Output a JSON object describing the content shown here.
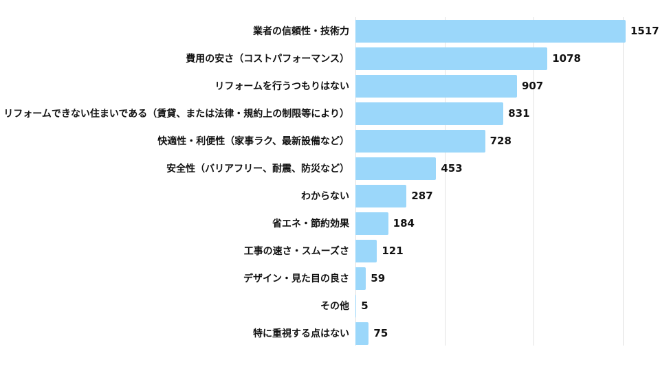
{
  "chart_data": {
    "type": "bar",
    "orientation": "horizontal",
    "title": "",
    "xlabel": "",
    "ylabel": "",
    "categories": [
      "業者の信頼性・技術力",
      "費用の安さ（コストパフォーマンス）",
      "リフォームを行うつもりはない",
      "リフォームできない住まいである（賃貸、または法律・規約上の制限等により）",
      "快適性・利便性（家事ラク、最新設備など）",
      "安全性（バリアフリー、耐震、防災など）",
      "わからない",
      "省エネ・節約効果",
      "工事の速さ・スムーズさ",
      "デザイン・見た目の良さ",
      "その他",
      "特に重視する点はない"
    ],
    "values": [
      1517,
      1078,
      907,
      831,
      728,
      453,
      287,
      184,
      121,
      59,
      5,
      75
    ],
    "value_labels_shown": true,
    "xlim": [
      0,
      1660
    ],
    "gridline_values": [
      0,
      500,
      1000,
      1500
    ],
    "axis_tick_labels_shown": false,
    "grid": "vertical gridlines only",
    "legend_position": "none",
    "colors": {
      "bar": "#9bd7fa",
      "gridline": "#e0e0e0",
      "text": "#111111",
      "background": "#ffffff"
    }
  }
}
